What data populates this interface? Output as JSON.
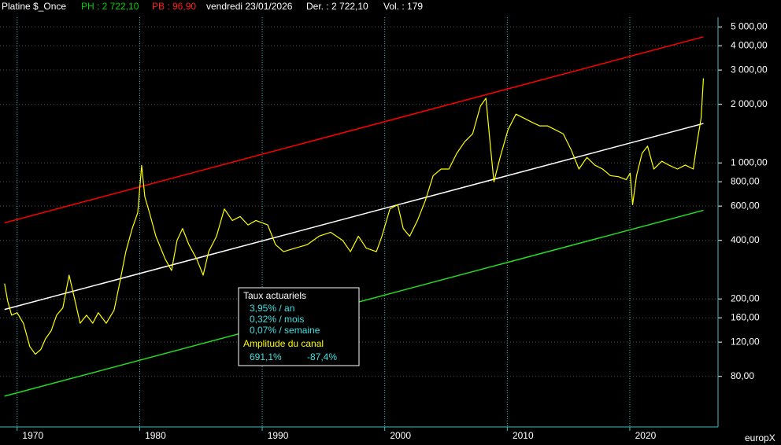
{
  "chart_data": {
    "type": "line",
    "title": "Platine $_Once",
    "header": [
      {
        "text": "PH : 2 722,10",
        "color": "#00d000"
      },
      {
        "text": "PB : 96,90",
        "color": "#ff2020"
      },
      {
        "text": "vendredi 23/01/2026",
        "color": "#ffffff"
      },
      {
        "text": "Der. : 2 722,10",
        "color": "#ffffff"
      },
      {
        "text": "Vol. : 179",
        "color": "#ffffff"
      }
    ],
    "log_scale": true,
    "grid": true,
    "xlim": [
      1968.6,
      2027.2
    ],
    "xticks": [
      1970,
      1980,
      1990,
      2000,
      2010,
      2020
    ],
    "ylim": [
      44,
      5600
    ],
    "yticks": [
      {
        "value": 5000,
        "label": "5 000,00"
      },
      {
        "value": 4000,
        "label": "4 000,00"
      },
      {
        "value": 3000,
        "label": "3 000,00"
      },
      {
        "value": 2000,
        "label": "2 000,00"
      },
      {
        "value": 1000,
        "label": "1 000,00"
      },
      {
        "value": 800,
        "label": "800,00"
      },
      {
        "value": 600,
        "label": "600,00"
      },
      {
        "value": 400,
        "label": "400,00"
      },
      {
        "value": 200,
        "label": "200,00"
      },
      {
        "value": 160,
        "label": "160,00"
      },
      {
        "value": 120,
        "label": "120,00"
      },
      {
        "value": 80,
        "label": "80,00"
      }
    ],
    "series": [
      {
        "color": "#ffff00",
        "x": [
          1968.97,
          1969.23,
          1969.55,
          1970,
          1970.51,
          1971.03,
          1971.48,
          1971.93,
          1972.32,
          1972.77,
          1973.22,
          1973.73,
          1974.24,
          1974.69,
          1975.14,
          1975.66,
          1976.17,
          1976.62,
          1977.27,
          1977.91,
          1978.36,
          1978.87,
          1979.39,
          1979.84,
          1980.16,
          1980.42,
          1980.8,
          1981.32,
          1982.09,
          1982.6,
          1983.05,
          1983.5,
          1984.02,
          1984.66,
          1985.18,
          1985.63,
          1986.27,
          1986.91,
          1987.56,
          1988.2,
          1988.84,
          1989.49,
          1990.45,
          1991.09,
          1991.74,
          1992.7,
          1993.67,
          1994.63,
          1995.59,
          1996.56,
          1997.2,
          1997.85,
          1998.49,
          1999.32,
          1999.77,
          2000.42,
          2001.06,
          2001.51,
          2002.03,
          2002.67,
          2003.31,
          2003.95,
          2004.6,
          2005.24,
          2005.88,
          2006.53,
          2007.17,
          2007.81,
          2008.26,
          2008.59,
          2008.91,
          2009.42,
          2010.06,
          2010.71,
          2011.35,
          2011.99,
          2012.64,
          2013.28,
          2013.92,
          2014.57,
          2015.21,
          2015.85,
          2016.5,
          2017.14,
          2017.78,
          2018.42,
          2019.07,
          2019.71,
          2020.03,
          2020.23,
          2020.55,
          2021,
          2021.45,
          2021.96,
          2022.61,
          2023.25,
          2023.89,
          2024.53,
          2025.18,
          2025.5,
          2025.82,
          2026.01
        ],
        "values": [
          240,
          195,
          165,
          170,
          150,
          114,
          104,
          110,
          125,
          137,
          165,
          180,
          265,
          200,
          150,
          165,
          150,
          170,
          150,
          175,
          240,
          350,
          460,
          555,
          970,
          670,
          555,
          420,
          320,
          280,
          400,
          460,
          380,
          320,
          265,
          350,
          420,
          580,
          506,
          530,
          480,
          506,
          480,
          380,
          350,
          365,
          380,
          420,
          440,
          400,
          350,
          420,
          365,
          350,
          420,
          580,
          610,
          460,
          420,
          506,
          640,
          860,
          930,
          930,
          1120,
          1286,
          1410,
          1960,
          2150,
          1286,
          800,
          1070,
          1480,
          1780,
          1700,
          1620,
          1550,
          1550,
          1480,
          1410,
          1170,
          930,
          1067,
          975,
          930,
          860,
          850,
          820,
          886,
          610,
          860,
          1120,
          1220,
          930,
          1020,
          970,
          930,
          975,
          930,
          1286,
          1700,
          2722.1
        ]
      }
    ],
    "channel_lines": [
      {
        "color": "#ff0000",
        "x": [
          1968.97,
          2026.01
        ],
        "values": [
          492,
          4446
        ]
      },
      {
        "color": "#ffffff",
        "x": [
          1968.97,
          2026.01
        ],
        "values": [
          176.6,
          1594
        ]
      },
      {
        "color": "#22dd22",
        "x": [
          1968.97,
          2026.01
        ],
        "values": [
          63.3,
          571
        ]
      }
    ],
    "info_box": {
      "title": "Taux actuariels",
      "rates": [
        "3,95% / an",
        "0,32% / mois",
        "0,07% / semaine"
      ],
      "amplitude_title": "Amplitude du canal",
      "amplitude": [
        "691,1%",
        "-87,4%"
      ]
    },
    "brand": "europX"
  }
}
